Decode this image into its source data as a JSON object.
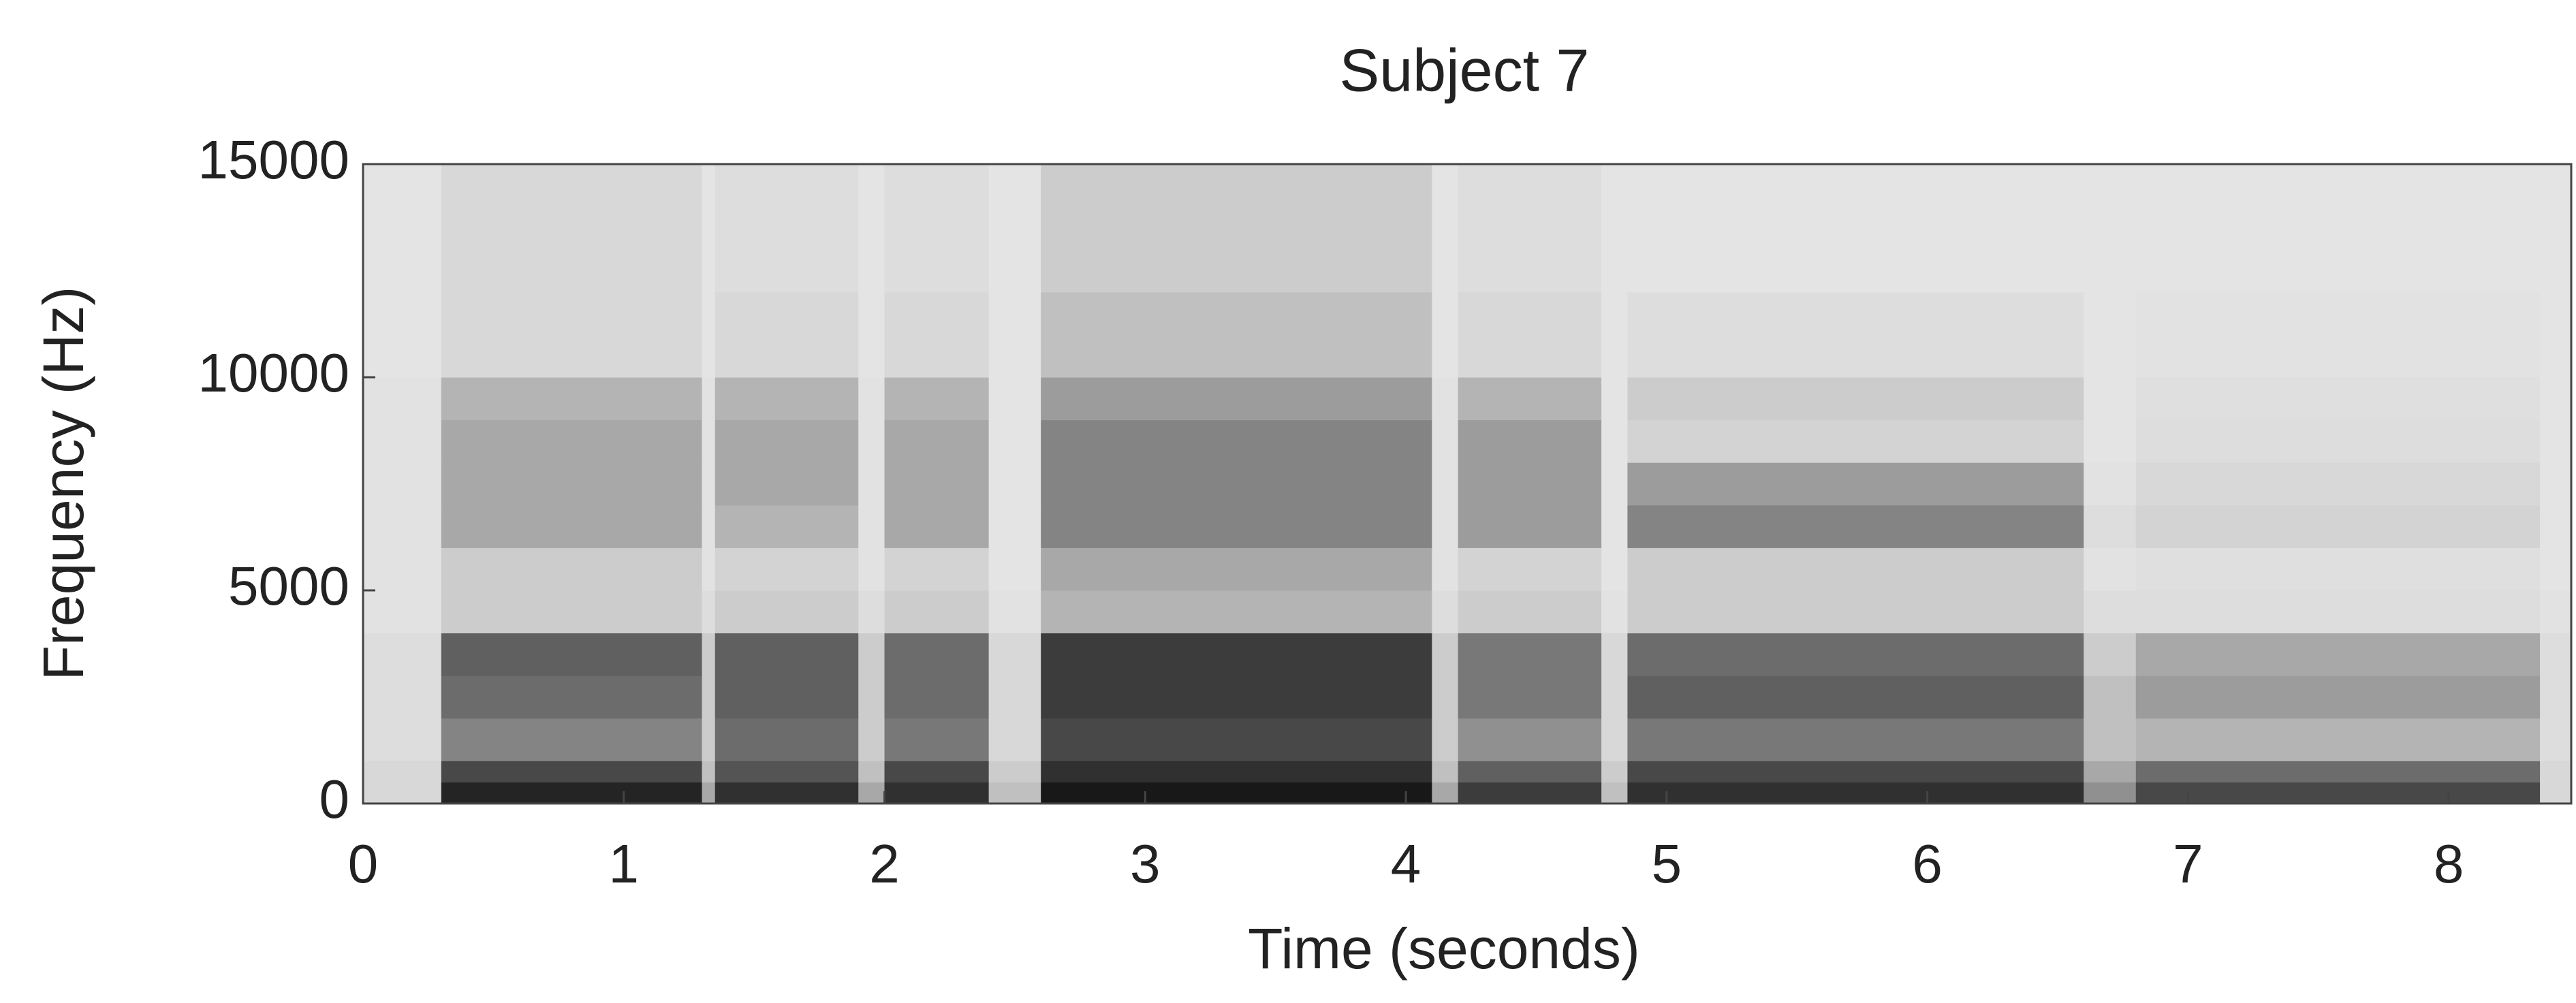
{
  "chart_data": {
    "type": "spectrogram",
    "title": "Subject 7",
    "xlabel": "Time (seconds)",
    "ylabel": "Frequency (Hz)",
    "colormap": "gray_r",
    "xlim": [
      0,
      8.47
    ],
    "ylim": [
      0,
      15000
    ],
    "xticks": [
      0,
      1,
      2,
      3,
      4,
      5,
      6,
      7,
      8
    ],
    "yticks": [
      0,
      5000,
      10000,
      15000
    ],
    "time_edges": [
      0,
      0.3,
      1.3,
      1.35,
      1.9,
      2.0,
      2.4,
      2.6,
      4.1,
      4.2,
      4.75,
      4.85,
      6.6,
      6.8,
      8.35,
      8.47
    ],
    "freq_edges": [
      0,
      500,
      1000,
      2000,
      3000,
      4000,
      5000,
      6000,
      7000,
      8000,
      9000,
      10000,
      12000,
      15000
    ],
    "z": [
      [
        0.1,
        0.85,
        0.3,
        0.8,
        0.3,
        0.8,
        0.2,
        0.9,
        0.3,
        0.75,
        0.2,
        0.8,
        0.4,
        0.7,
        0.1
      ],
      [
        0.1,
        0.7,
        0.2,
        0.65,
        0.2,
        0.7,
        0.15,
        0.8,
        0.2,
        0.6,
        0.15,
        0.7,
        0.3,
        0.55,
        0.1
      ],
      [
        0.08,
        0.45,
        0.15,
        0.55,
        0.15,
        0.5,
        0.1,
        0.7,
        0.15,
        0.4,
        0.1,
        0.5,
        0.2,
        0.25,
        0.08
      ],
      [
        0.08,
        0.55,
        0.15,
        0.6,
        0.15,
        0.55,
        0.1,
        0.75,
        0.15,
        0.5,
        0.1,
        0.6,
        0.2,
        0.35,
        0.08
      ],
      [
        0.08,
        0.6,
        0.15,
        0.6,
        0.15,
        0.55,
        0.1,
        0.75,
        0.15,
        0.5,
        0.1,
        0.55,
        0.15,
        0.3,
        0.08
      ],
      [
        0.06,
        0.15,
        0.08,
        0.15,
        0.08,
        0.15,
        0.06,
        0.25,
        0.08,
        0.15,
        0.06,
        0.15,
        0.08,
        0.08,
        0.06
      ],
      [
        0.06,
        0.15,
        0.06,
        0.12,
        0.06,
        0.12,
        0.05,
        0.3,
        0.06,
        0.12,
        0.05,
        0.15,
        0.06,
        0.07,
        0.05
      ],
      [
        0.06,
        0.3,
        0.06,
        0.25,
        0.06,
        0.3,
        0.05,
        0.45,
        0.06,
        0.35,
        0.05,
        0.45,
        0.08,
        0.12,
        0.05
      ],
      [
        0.06,
        0.3,
        0.06,
        0.3,
        0.06,
        0.3,
        0.05,
        0.45,
        0.06,
        0.35,
        0.05,
        0.35,
        0.06,
        0.1,
        0.05
      ],
      [
        0.06,
        0.3,
        0.06,
        0.3,
        0.06,
        0.3,
        0.05,
        0.45,
        0.06,
        0.35,
        0.05,
        0.12,
        0.05,
        0.08,
        0.05
      ],
      [
        0.06,
        0.25,
        0.06,
        0.25,
        0.06,
        0.25,
        0.05,
        0.35,
        0.06,
        0.25,
        0.05,
        0.15,
        0.05,
        0.07,
        0.05
      ],
      [
        0.05,
        0.1,
        0.05,
        0.1,
        0.05,
        0.1,
        0.05,
        0.2,
        0.05,
        0.1,
        0.05,
        0.08,
        0.05,
        0.06,
        0.05
      ],
      [
        0.05,
        0.1,
        0.05,
        0.08,
        0.05,
        0.08,
        0.05,
        0.15,
        0.05,
        0.08,
        0.05,
        0.05,
        0.05,
        0.05,
        0.05
      ]
    ]
  }
}
